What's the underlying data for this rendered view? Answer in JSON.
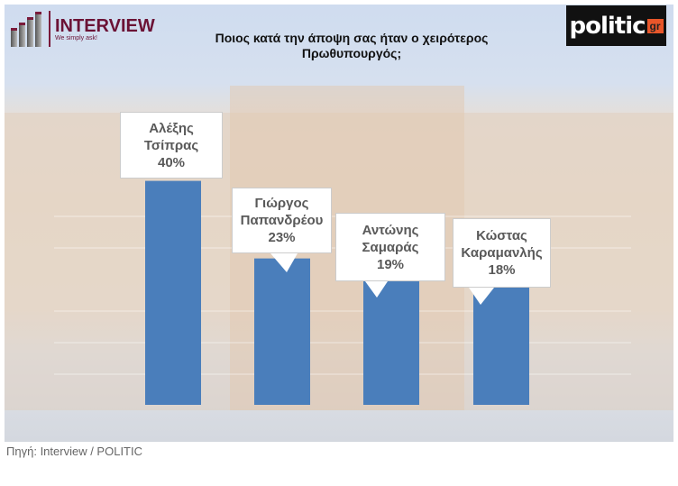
{
  "logos": {
    "interview": {
      "name": "INTERVIEW",
      "tagline": "We simply ask!"
    },
    "politic": {
      "name": "politic",
      "suffix": "gr"
    }
  },
  "source": "Πηγή: Interview / POLITIC",
  "chart_data": {
    "type": "bar",
    "title": "Ποιος κατά την άποψη σας ήταν ο χειρότερος Πρωθυπουργός;",
    "categories": [
      "Αλέξης Τσίπρας",
      "Γιώργος Παπανδρέου",
      "Αντώνης Σαμαράς",
      "Κώστας Καραμανλής"
    ],
    "label_lines": [
      [
        "Αλέξης",
        "Τσίπρας"
      ],
      [
        "Γιώργος",
        "Παπανδρέου"
      ],
      [
        "Αντώνης",
        "Σαμαράς"
      ],
      [
        "Κώστας",
        "Καραμανλής"
      ]
    ],
    "values": [
      40,
      23,
      19,
      18
    ],
    "data_labels": [
      "40%",
      "23%",
      "19%",
      "18%"
    ],
    "unit": "%",
    "bar_color": "#4a7ebb",
    "grid": true,
    "legend": "none"
  }
}
